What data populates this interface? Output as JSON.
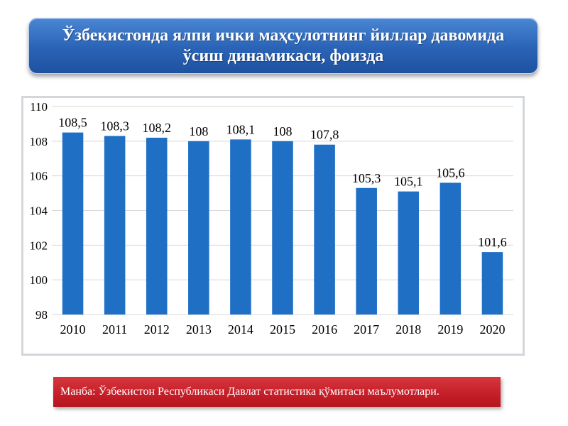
{
  "header": {
    "title_line1": "Ўзбекистонда ялпи ички маҳсулотнинг йиллар давомида",
    "title_line2": "ўсиш динамикаси, фоизда"
  },
  "footer": {
    "source": "Манба: Ўзбекистон Республикаси Давлат статистика қўмитаси маълумотлари."
  },
  "chart_data": {
    "type": "bar",
    "title": "Ўзбекистонда ялпи ички маҳсулотнинг йиллар давомида ўсиш динамикаси, фоизда",
    "xlabel": "",
    "ylabel": "",
    "categories": [
      "2010",
      "2011",
      "2012",
      "2013",
      "2014",
      "2015",
      "2016",
      "2017",
      "2018",
      "2019",
      "2020"
    ],
    "values": [
      108.5,
      108.3,
      108.2,
      108,
      108.1,
      108,
      107.8,
      105.3,
      105.1,
      105.6,
      101.6
    ],
    "value_labels": [
      "108,5",
      "108,3",
      "108,2",
      "108",
      "108,1",
      "108",
      "107,8",
      "105,3",
      "105,1",
      "105,6",
      "101,6"
    ],
    "ylim": [
      98,
      110
    ],
    "yticks": [
      98,
      100,
      102,
      104,
      106,
      108,
      110
    ],
    "grid": true,
    "legend": "none",
    "bar_color": "#1f6fc5",
    "grid_color": "#d9d9d9"
  }
}
